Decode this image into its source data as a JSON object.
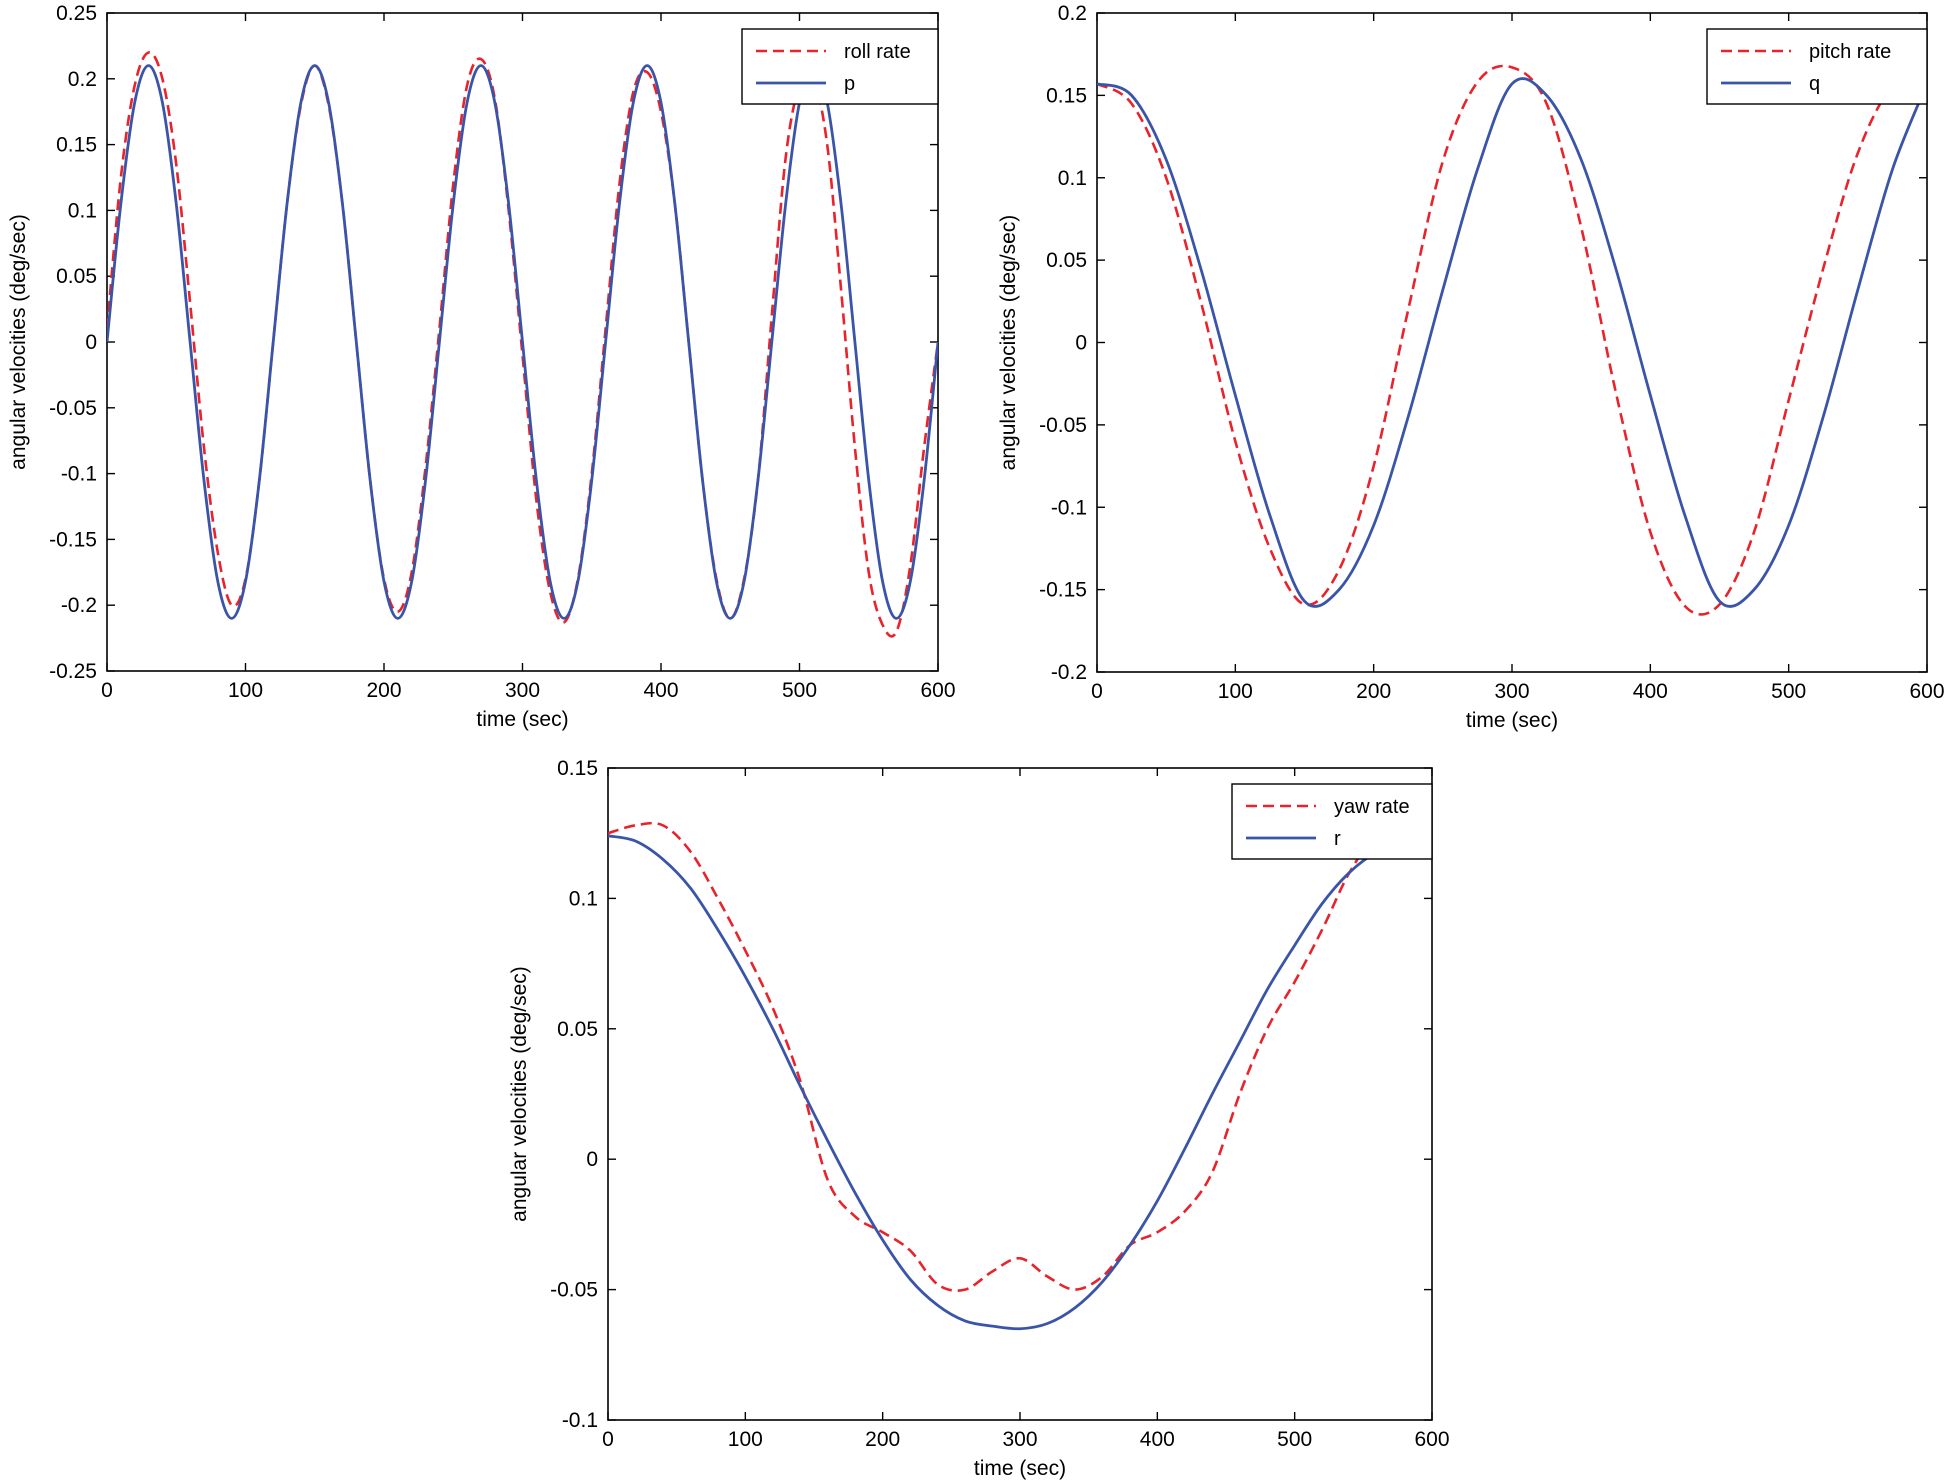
{
  "colors": {
    "reference": "#e8232b",
    "measured": "#3a55a8"
  },
  "chart_data": [
    {
      "type": "line",
      "title": "",
      "xlabel": "time (sec)",
      "ylabel": "angular velocities (deg/sec)",
      "xlim": [
        0,
        600
      ],
      "ylim": [
        -0.25,
        0.25
      ],
      "xticks": [
        0,
        100,
        200,
        300,
        400,
        500,
        600
      ],
      "xtick_labels": [
        "0",
        "100",
        "200",
        "300",
        "400",
        "500",
        "600"
      ],
      "yticks": [
        -0.25,
        -0.2,
        -0.15,
        -0.1,
        -0.05,
        0,
        0.05,
        0.1,
        0.15,
        0.2,
        0.25
      ],
      "ytick_labels": [
        "-0.25",
        "-0.2",
        "-0.15",
        "-0.1",
        "-0.05",
        "0",
        "0.05",
        "0.1",
        "0.15",
        "0.2",
        "0.25"
      ],
      "legend_position": "top-right",
      "series": [
        {
          "name": "roll rate",
          "style": "dashed",
          "color": "#e8232b",
          "x": [
            0,
            10,
            20,
            30,
            40,
            50,
            60,
            70,
            80,
            90,
            100,
            110,
            120,
            130,
            140,
            150,
            160,
            170,
            180,
            190,
            200,
            210,
            220,
            230,
            240,
            250,
            260,
            270,
            280,
            290,
            300,
            310,
            320,
            330,
            340,
            350,
            360,
            370,
            380,
            390,
            400,
            410,
            420,
            430,
            440,
            450,
            460,
            470,
            480,
            490,
            500,
            510,
            520,
            530,
            540,
            550,
            560,
            570,
            580,
            590,
            600
          ],
          "y": [
            0.01,
            0.125,
            0.195,
            0.22,
            0.2,
            0.135,
            0.03,
            -0.08,
            -0.16,
            -0.2,
            -0.18,
            -0.105,
            0,
            0.105,
            0.18,
            0.21,
            0.18,
            0.105,
            0,
            -0.105,
            -0.18,
            -0.205,
            -0.175,
            -0.095,
            0.01,
            0.12,
            0.195,
            0.215,
            0.185,
            0.1,
            -0.01,
            -0.12,
            -0.19,
            -0.213,
            -0.18,
            -0.1,
            0.01,
            0.12,
            0.19,
            0.205,
            0.175,
            0.105,
            0,
            -0.105,
            -0.18,
            -0.21,
            -0.18,
            -0.105,
            0.02,
            0.14,
            0.195,
            0.2,
            0.15,
            0.04,
            -0.08,
            -0.175,
            -0.215,
            -0.22,
            -0.17,
            -0.08,
            0
          ]
        },
        {
          "name": "p",
          "style": "solid",
          "color": "#3a55a8",
          "x": [
            0,
            10,
            20,
            30,
            40,
            50,
            60,
            70,
            80,
            90,
            100,
            110,
            120,
            130,
            140,
            150,
            160,
            170,
            180,
            190,
            200,
            210,
            220,
            230,
            240,
            250,
            260,
            270,
            280,
            290,
            300,
            310,
            320,
            330,
            340,
            350,
            360,
            370,
            380,
            390,
            400,
            410,
            420,
            430,
            440,
            450,
            460,
            470,
            480,
            490,
            500,
            510,
            520,
            530,
            540,
            550,
            560,
            570,
            580,
            590,
            600
          ],
          "y": [
            0,
            0.105,
            0.182,
            0.21,
            0.182,
            0.105,
            0,
            -0.105,
            -0.182,
            -0.21,
            -0.182,
            -0.105,
            0,
            0.105,
            0.182,
            0.21,
            0.182,
            0.105,
            0,
            -0.105,
            -0.182,
            -0.21,
            -0.182,
            -0.105,
            0,
            0.105,
            0.182,
            0.21,
            0.182,
            0.105,
            0,
            -0.105,
            -0.182,
            -0.21,
            -0.182,
            -0.105,
            0,
            0.105,
            0.182,
            0.21,
            0.182,
            0.105,
            0,
            -0.105,
            -0.182,
            -0.21,
            -0.182,
            -0.105,
            0,
            0.105,
            0.182,
            0.21,
            0.182,
            0.105,
            0,
            -0.105,
            -0.182,
            -0.21,
            -0.182,
            -0.105,
            0
          ]
        }
      ]
    },
    {
      "type": "line",
      "title": "",
      "xlabel": "time (sec)",
      "ylabel": "angular velocities (deg/sec)",
      "xlim": [
        0,
        600
      ],
      "ylim": [
        -0.2,
        0.2
      ],
      "xticks": [
        0,
        100,
        200,
        300,
        400,
        500,
        600
      ],
      "xtick_labels": [
        "0",
        "100",
        "200",
        "300",
        "400",
        "500",
        "600"
      ],
      "yticks": [
        -0.2,
        -0.15,
        -0.1,
        -0.05,
        0,
        0.05,
        0.1,
        0.15,
        0.2
      ],
      "ytick_labels": [
        "-0.2",
        "-0.15",
        "-0.1",
        "-0.05",
        "0",
        "0.05",
        "0.1",
        "0.15",
        "0.2"
      ],
      "legend_position": "top-right",
      "series": [
        {
          "name": "pitch rate",
          "style": "dashed",
          "color": "#e8232b",
          "x": [
            0,
            25,
            50,
            75,
            100,
            125,
            150,
            175,
            200,
            225,
            250,
            275,
            300,
            325,
            350,
            375,
            400,
            425,
            450,
            475,
            500,
            525,
            550,
            575,
            600
          ],
          "y": [
            0.157,
            0.145,
            0.1,
            0.025,
            -0.06,
            -0.125,
            -0.159,
            -0.138,
            -0.075,
            0.02,
            0.11,
            0.158,
            0.167,
            0.145,
            0.07,
            -0.03,
            -0.115,
            -0.16,
            -0.159,
            -0.115,
            -0.035,
            0.045,
            0.115,
            0.155,
            0.157
          ]
        },
        {
          "name": "q",
          "style": "solid",
          "color": "#3a55a8",
          "x": [
            0,
            25,
            50,
            75,
            100,
            125,
            150,
            175,
            200,
            225,
            250,
            275,
            300,
            325,
            350,
            375,
            400,
            425,
            450,
            475,
            500,
            525,
            550,
            575,
            600
          ],
          "y": [
            0.157,
            0.15,
            0.111,
            0.045,
            -0.032,
            -0.105,
            -0.157,
            -0.15,
            -0.111,
            -0.045,
            0.032,
            0.105,
            0.157,
            0.15,
            0.111,
            0.045,
            -0.032,
            -0.105,
            -0.157,
            -0.15,
            -0.111,
            -0.045,
            0.032,
            0.105,
            0.157
          ]
        }
      ]
    },
    {
      "type": "line",
      "title": "",
      "xlabel": "time (sec)",
      "ylabel": "angular velocities (deg/sec)",
      "xlim": [
        0,
        600
      ],
      "ylim": [
        -0.1,
        0.15
      ],
      "xticks": [
        0,
        100,
        200,
        300,
        400,
        500,
        600
      ],
      "xtick_labels": [
        "0",
        "100",
        "200",
        "300",
        "400",
        "500",
        "600"
      ],
      "yticks": [
        -0.1,
        -0.05,
        0,
        0.05,
        0.1,
        0.15
      ],
      "ytick_labels": [
        "-0.1",
        "-0.05",
        "0",
        "0.05",
        "0.1",
        "0.15"
      ],
      "legend_position": "top-right",
      "series": [
        {
          "name": "yaw rate",
          "style": "dashed",
          "color": "#e8232b",
          "x": [
            0,
            20,
            40,
            60,
            80,
            100,
            120,
            140,
            160,
            180,
            200,
            220,
            240,
            260,
            280,
            300,
            320,
            340,
            360,
            380,
            400,
            420,
            440,
            460,
            480,
            500,
            520,
            540,
            560,
            580,
            600
          ],
          "y": [
            0.125,
            0.128,
            0.128,
            0.118,
            0.1,
            0.08,
            0.058,
            0.03,
            -0.008,
            -0.022,
            -0.028,
            -0.035,
            -0.048,
            -0.05,
            -0.043,
            -0.038,
            -0.045,
            -0.05,
            -0.045,
            -0.033,
            -0.028,
            -0.02,
            -0.005,
            0.025,
            0.05,
            0.068,
            0.088,
            0.11,
            0.124,
            0.125,
            0.125
          ]
        },
        {
          "name": "r",
          "style": "solid",
          "color": "#3a55a8",
          "x": [
            0,
            20,
            40,
            60,
            80,
            100,
            120,
            140,
            160,
            180,
            200,
            220,
            240,
            260,
            280,
            300,
            320,
            340,
            360,
            380,
            400,
            420,
            440,
            460,
            480,
            500,
            520,
            540,
            560,
            580,
            600
          ],
          "y": [
            0.124,
            0.122,
            0.115,
            0.104,
            0.088,
            0.07,
            0.05,
            0.028,
            0.007,
            -0.013,
            -0.031,
            -0.046,
            -0.056,
            -0.062,
            -0.064,
            -0.065,
            -0.063,
            -0.057,
            -0.047,
            -0.033,
            -0.016,
            0.004,
            0.025,
            0.045,
            0.065,
            0.082,
            0.098,
            0.11,
            0.118,
            0.123,
            0.124
          ]
        }
      ]
    }
  ]
}
